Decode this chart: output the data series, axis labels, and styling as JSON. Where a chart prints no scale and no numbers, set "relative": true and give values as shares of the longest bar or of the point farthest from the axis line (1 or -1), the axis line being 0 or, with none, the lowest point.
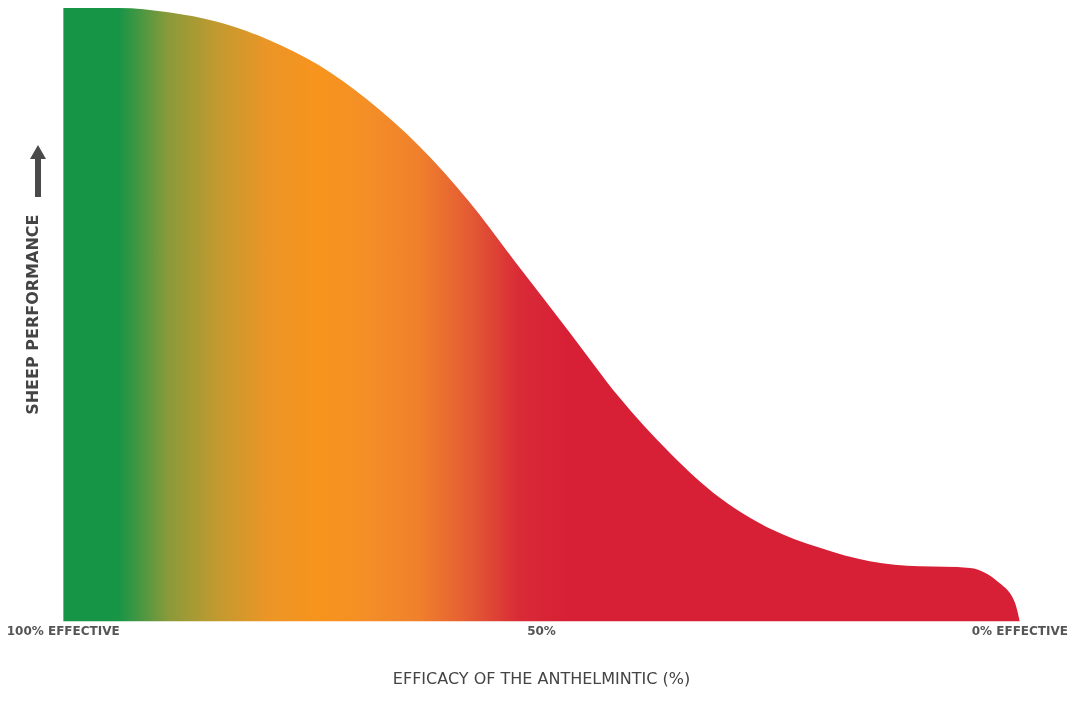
{
  "chart_data": {
    "type": "area",
    "relative": true,
    "xlabel": "EFFICACY OF THE ANTHELMINTIC (%)",
    "ylabel": "SHEEP PERFORMANCE",
    "xlim": [
      100,
      0
    ],
    "xticks": [
      {
        "value": 100,
        "label": "100% EFFECTIVE"
      },
      {
        "value": 50,
        "label": "50%"
      },
      {
        "value": 0,
        "label": "0% EFFECTIVE"
      }
    ],
    "grid": false,
    "legend": false,
    "marker": "none",
    "series": [
      {
        "x": [
          100,
          94.2,
          89,
          83.8,
          78.5,
          73.3,
          68.1,
          62.8,
          57.6,
          52.4,
          47.1,
          41.9,
          36.6,
          31.4,
          26.2,
          20.9,
          15.7,
          10.5,
          5.2,
          2.1,
          0.5,
          0
        ],
        "values": [
          1,
          1,
          0.993,
          0.977,
          0.948,
          0.907,
          0.849,
          0.775,
          0.685,
          0.579,
          0.472,
          0.366,
          0.275,
          0.202,
          0.152,
          0.12,
          0.098,
          0.09,
          0.087,
          0.062,
          0.03,
          0
        ],
        "colors": [
          "#169547",
          "#169547",
          "#8a9a3a",
          "#c39a2f",
          "#ec9526",
          "#f7941d",
          "#f48e27",
          "#f0802c",
          "#e45c33",
          "#d92b37",
          "#d71f35",
          "#d71f35",
          "#d71f35",
          "#d71f35",
          "#d71f35",
          "#d71f35",
          "#d71f35",
          "#d71f35",
          "#d71f35",
          "#d71f35",
          "#d71f35",
          "#d71f35"
        ]
      }
    ]
  }
}
